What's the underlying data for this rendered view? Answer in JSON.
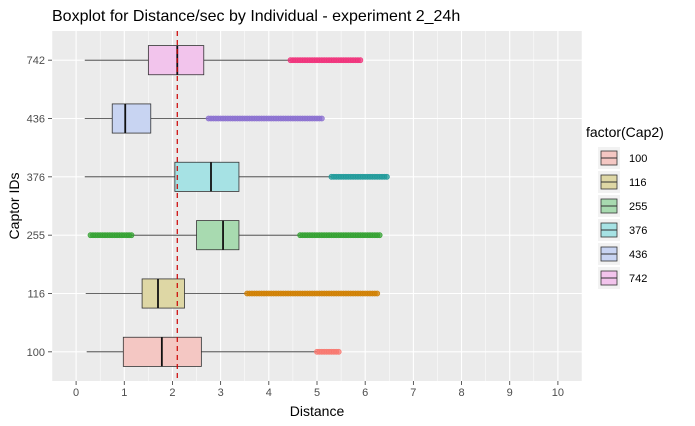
{
  "chart_data": {
    "type": "boxplot",
    "title": "Boxplot for Distance/sec by Individual - experiment 2_24h",
    "xlabel": "Distance",
    "ylabel": "Captor IDs",
    "xlim": [
      -0.5,
      10.5
    ],
    "xticks": [
      0,
      1,
      2,
      3,
      4,
      5,
      6,
      7,
      8,
      9,
      10
    ],
    "grid": true,
    "reference_line": {
      "x": 2.1,
      "style": "dashed",
      "color": "#cc0000"
    },
    "legend": {
      "title": "factor(Cap2)",
      "placement": "right"
    },
    "series": [
      {
        "name": "100",
        "fill": "#f4c7c3",
        "point_color": "#f8766d",
        "whisker_low": 0.22,
        "q1": 0.98,
        "median": 1.78,
        "q3": 2.6,
        "whisker_high": 5.0,
        "outliers_from": 5.0,
        "outliers_to": 5.45
      },
      {
        "name": "116",
        "fill": "#ded7a5",
        "point_color": "#d07f00",
        "whisker_low": 0.2,
        "q1": 1.37,
        "median": 1.7,
        "q3": 2.25,
        "whisker_high": 3.55,
        "outliers_from": 3.55,
        "outliers_to": 6.25
      },
      {
        "name": "255",
        "fill": "#a8dab0",
        "point_color": "#31a02f",
        "whisker_low": 1.15,
        "q1": 2.5,
        "median": 3.05,
        "q3": 3.38,
        "whisker_high": 4.65,
        "outliers_from": 0.3,
        "outliers_to": 1.15,
        "outliers_high_from": 4.65,
        "outliers_high_to": 6.3
      },
      {
        "name": "376",
        "fill": "#a6e2e4",
        "point_color": "#1f9a9a",
        "whisker_low": 0.18,
        "q1": 2.05,
        "median": 2.8,
        "q3": 3.38,
        "whisker_high": 5.3,
        "outliers_from": 5.3,
        "outliers_to": 6.45
      },
      {
        "name": "436",
        "fill": "#c8d4f2",
        "point_color": "#8a6fd0",
        "whisker_low": 0.18,
        "q1": 0.75,
        "median": 1.02,
        "q3": 1.55,
        "whisker_high": 2.75,
        "outliers_from": 2.75,
        "outliers_to": 5.1
      },
      {
        "name": "742",
        "fill": "#f2c4ec",
        "point_color": "#f0307a",
        "whisker_low": 0.18,
        "q1": 1.5,
        "median": 2.1,
        "q3": 2.65,
        "whisker_high": 4.45,
        "outliers_from": 4.45,
        "outliers_to": 5.9
      }
    ]
  }
}
